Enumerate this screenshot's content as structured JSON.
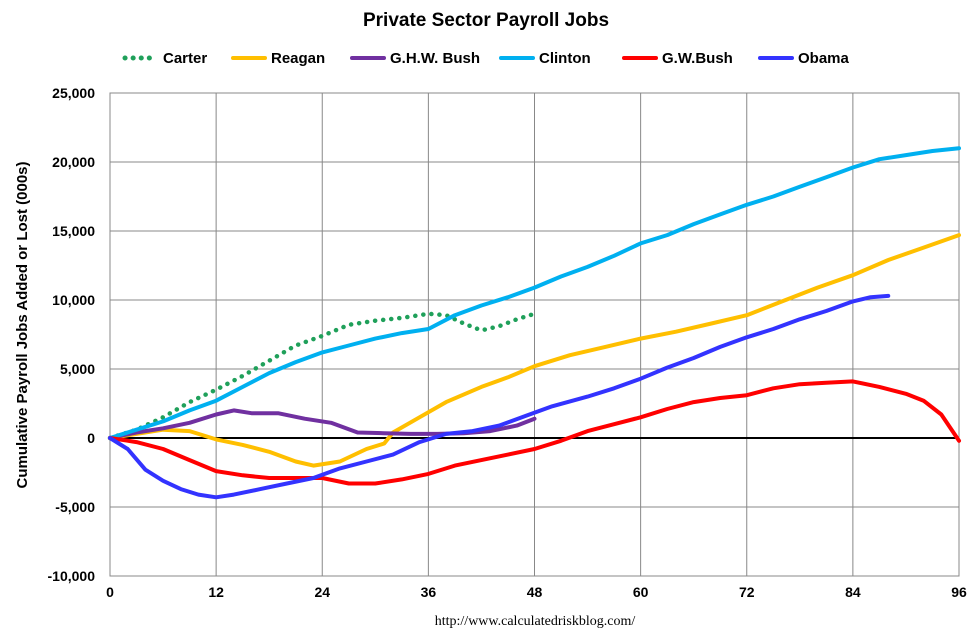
{
  "chart_data": {
    "type": "line",
    "title": "Private Sector Payroll Jobs",
    "xlabel": "",
    "ylabel": "Cumulative Payroll Jobs Added or  Lost (000s)",
    "source": "http://www.calculatedriskblog.com/",
    "xlim": [
      0,
      96
    ],
    "ylim": [
      -10000,
      25000
    ],
    "x_ticks": [
      "0",
      "12",
      "24",
      "36",
      "48",
      "60",
      "72",
      "84",
      "96"
    ],
    "y_ticks": [
      "-10,000",
      "-5,000",
      "0",
      "5,000",
      "10,000",
      "15,000",
      "20,000",
      "25,000"
    ],
    "grid": true,
    "legend_position": "top",
    "series": [
      {
        "name": "Carter",
        "color": "#1fa05a",
        "style": "dotted",
        "points": [
          [
            0,
            0
          ],
          [
            3,
            600
          ],
          [
            6,
            1500
          ],
          [
            9,
            2600
          ],
          [
            12,
            3500
          ],
          [
            15,
            4500
          ],
          [
            18,
            5600
          ],
          [
            21,
            6700
          ],
          [
            24,
            7400
          ],
          [
            27,
            8200
          ],
          [
            30,
            8500
          ],
          [
            33,
            8700
          ],
          [
            36,
            9000
          ],
          [
            38,
            8900
          ],
          [
            40,
            8300
          ],
          [
            42,
            7800
          ],
          [
            44,
            8100
          ],
          [
            46,
            8600
          ],
          [
            48,
            9000
          ]
        ]
      },
      {
        "name": "Reagan",
        "color": "#ffbf00",
        "style": "solid",
        "points": [
          [
            0,
            0
          ],
          [
            3,
            300
          ],
          [
            6,
            600
          ],
          [
            9,
            500
          ],
          [
            12,
            -100
          ],
          [
            15,
            -500
          ],
          [
            18,
            -1000
          ],
          [
            21,
            -1700
          ],
          [
            23,
            -2000
          ],
          [
            26,
            -1700
          ],
          [
            29,
            -800
          ],
          [
            31,
            -400
          ],
          [
            32,
            400
          ],
          [
            35,
            1500
          ],
          [
            38,
            2600
          ],
          [
            42,
            3700
          ],
          [
            45,
            4400
          ],
          [
            48,
            5200
          ],
          [
            52,
            6000
          ],
          [
            56,
            6600
          ],
          [
            60,
            7200
          ],
          [
            64,
            7700
          ],
          [
            68,
            8300
          ],
          [
            72,
            8900
          ],
          [
            76,
            9900
          ],
          [
            80,
            10900
          ],
          [
            84,
            11800
          ],
          [
            88,
            12900
          ],
          [
            92,
            13800
          ],
          [
            96,
            14700
          ]
        ]
      },
      {
        "name": "G.H.W. Bush",
        "color": "#7030a0",
        "style": "solid",
        "points": [
          [
            0,
            0
          ],
          [
            3,
            400
          ],
          [
            6,
            700
          ],
          [
            9,
            1100
          ],
          [
            12,
            1700
          ],
          [
            14,
            2000
          ],
          [
            16,
            1800
          ],
          [
            19,
            1800
          ],
          [
            22,
            1400
          ],
          [
            25,
            1100
          ],
          [
            28,
            400
          ],
          [
            31,
            350
          ],
          [
            34,
            300
          ],
          [
            37,
            300
          ],
          [
            40,
            350
          ],
          [
            43,
            500
          ],
          [
            46,
            900
          ],
          [
            48,
            1400
          ]
        ]
      },
      {
        "name": "Clinton",
        "color": "#00b0f0",
        "style": "solid",
        "points": [
          [
            0,
            0
          ],
          [
            3,
            600
          ],
          [
            6,
            1200
          ],
          [
            9,
            2000
          ],
          [
            12,
            2700
          ],
          [
            15,
            3700
          ],
          [
            18,
            4700
          ],
          [
            21,
            5500
          ],
          [
            24,
            6200
          ],
          [
            27,
            6700
          ],
          [
            30,
            7200
          ],
          [
            33,
            7600
          ],
          [
            36,
            7900
          ],
          [
            39,
            8900
          ],
          [
            42,
            9600
          ],
          [
            45,
            10200
          ],
          [
            48,
            10900
          ],
          [
            51,
            11700
          ],
          [
            54,
            12400
          ],
          [
            57,
            13200
          ],
          [
            60,
            14100
          ],
          [
            63,
            14700
          ],
          [
            66,
            15500
          ],
          [
            69,
            16200
          ],
          [
            72,
            16900
          ],
          [
            75,
            17500
          ],
          [
            78,
            18200
          ],
          [
            81,
            18900
          ],
          [
            84,
            19600
          ],
          [
            87,
            20200
          ],
          [
            90,
            20500
          ],
          [
            93,
            20800
          ],
          [
            96,
            21000
          ]
        ]
      },
      {
        "name": "G.W.Bush",
        "color": "#ff0000",
        "style": "solid",
        "points": [
          [
            0,
            0
          ],
          [
            3,
            -300
          ],
          [
            6,
            -800
          ],
          [
            9,
            -1600
          ],
          [
            12,
            -2400
          ],
          [
            15,
            -2700
          ],
          [
            18,
            -2900
          ],
          [
            21,
            -2900
          ],
          [
            24,
            -2900
          ],
          [
            27,
            -3300
          ],
          [
            30,
            -3300
          ],
          [
            33,
            -3000
          ],
          [
            36,
            -2600
          ],
          [
            39,
            -2000
          ],
          [
            42,
            -1600
          ],
          [
            45,
            -1200
          ],
          [
            48,
            -800
          ],
          [
            51,
            -200
          ],
          [
            54,
            500
          ],
          [
            57,
            1000
          ],
          [
            60,
            1500
          ],
          [
            63,
            2100
          ],
          [
            66,
            2600
          ],
          [
            69,
            2900
          ],
          [
            72,
            3100
          ],
          [
            75,
            3600
          ],
          [
            78,
            3900
          ],
          [
            81,
            4000
          ],
          [
            84,
            4100
          ],
          [
            87,
            3700
          ],
          [
            90,
            3200
          ],
          [
            92,
            2700
          ],
          [
            94,
            1700
          ],
          [
            96,
            -200
          ]
        ]
      },
      {
        "name": "Obama",
        "color": "#3333ff",
        "style": "solid",
        "points": [
          [
            0,
            0
          ],
          [
            2,
            -800
          ],
          [
            4,
            -2300
          ],
          [
            6,
            -3100
          ],
          [
            8,
            -3700
          ],
          [
            10,
            -4100
          ],
          [
            12,
            -4300
          ],
          [
            14,
            -4100
          ],
          [
            17,
            -3700
          ],
          [
            20,
            -3300
          ],
          [
            23,
            -2900
          ],
          [
            26,
            -2200
          ],
          [
            29,
            -1700
          ],
          [
            32,
            -1200
          ],
          [
            35,
            -300
          ],
          [
            38,
            300
          ],
          [
            41,
            500
          ],
          [
            44,
            900
          ],
          [
            47,
            1600
          ],
          [
            50,
            2300
          ],
          [
            54,
            3000
          ],
          [
            57,
            3600
          ],
          [
            60,
            4300
          ],
          [
            63,
            5100
          ],
          [
            66,
            5800
          ],
          [
            69,
            6600
          ],
          [
            72,
            7300
          ],
          [
            75,
            7900
          ],
          [
            78,
            8600
          ],
          [
            81,
            9200
          ],
          [
            84,
            9900
          ],
          [
            86,
            10200
          ],
          [
            88,
            10300
          ]
        ]
      }
    ]
  }
}
